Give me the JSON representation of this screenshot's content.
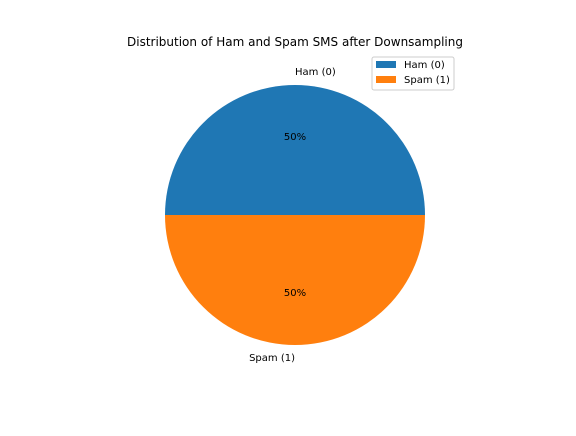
{
  "chart_data": {
    "type": "pie",
    "title": "Distribution of Ham and Spam SMS after Downsampling",
    "labels": [
      "Ham (0)",
      "Spam (1)"
    ],
    "values": [
      50,
      50
    ],
    "percent_labels": [
      "50%",
      "50%"
    ],
    "colors": [
      "#1f77b4",
      "#ff7f0e"
    ],
    "start_angle_deg": 0,
    "legend": {
      "position": "top-right",
      "entries": [
        "Ham (0)",
        "Spam (1)"
      ]
    }
  }
}
